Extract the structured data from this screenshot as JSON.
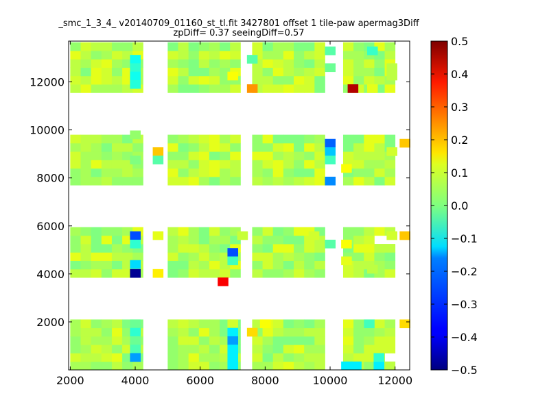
{
  "chart_data": {
    "type": "heatmap",
    "title": "_smc_1_3_4_ v20140709_01160_st_tl.fit 3427801 offset 1 tile-paw apermag3Diff",
    "subtitle": "zpDiff= 0.37 seeingDiff=0.57",
    "xlim": [
      1950,
      12450
    ],
    "ylim": [
      0,
      13700
    ],
    "xticks": [
      2000,
      4000,
      6000,
      8000,
      10000,
      12000
    ],
    "yticks": [
      2000,
      4000,
      6000,
      8000,
      10000,
      12000
    ],
    "grid": false,
    "colorbar": {
      "range": [
        -0.5,
        0.5
      ],
      "ticks": [
        "0.5",
        "0.4",
        "0.3",
        "0.2",
        "0.1",
        "0.0",
        "−0.1",
        "−0.2",
        "−0.3",
        "−0.4",
        "−0.5"
      ],
      "colormap": "jet"
    },
    "cell_size": [
      320,
      350
    ],
    "value_scale": 0.02,
    "block_columns": [
      {
        "x0": 2000,
        "cols": 7
      },
      {
        "x0": 5000,
        "cols": 7
      },
      {
        "x0": 7600,
        "cols": 7
      },
      {
        "x0": 10400,
        "cols": 5
      }
    ],
    "block_rows": [
      {
        "y0": 0,
        "rows": 6
      },
      {
        "y0": 3850,
        "rows": 6
      },
      {
        "y0": 7700,
        "rows": 6
      },
      {
        "y0": 11550,
        "rows": 6
      }
    ],
    "tile_grids": [
      [
        "2211312",
        "4334500",
        "1243143",
        "1322421",
        "2331513",
        "2412300"
      ],
      [
        "1244121",
        "1252233",
        "1223140",
        "1441320",
        "2315200",
        "3432200"
      ],
      [
        "2245323",
        "4031233",
        "3104522",
        "4200003",
        "1532233",
        "3540102"
      ],
      [
        "33123",
        "3443",
        "41444",
        "51244",
        "41123",
        "51442"
      ],
      [
        "3341442",
        "0122033",
        "5355332",
        "1300210",
        "1405053",
        "2101125"
      ],
      [
        "0143341",
        "0032535",
        "4124232",
        "2443105",
        "2320220",
        "3520412"
      ],
      [
        "3112421",
        "1420313",
        "4423210",
        "1055143",
        "3110043",
        "1401550"
      ],
      [
        "43024",
        "43321",
        "11410",
        "05533",
        "134",
        "11353"
      ],
      [
        "1223111",
        "1202232",
        "4253331",
        "4221212",
        "2320331",
        "4332203"
      ],
      [
        "4452021",
        "5134523",
        "3314543",
        "1145015",
        "5013541",
        "1234524"
      ],
      [
        "3232345",
        "2151005",
        "2453153",
        "5523214",
        "1145053",
        "1500012"
      ],
      [
        "25304",
        "01142",
        "44223",
        "43332",
        "03530",
        "00550"
      ],
      [
        "3522234",
        "4354352",
        "3054152",
        "3245211",
        "5312435",
        "1433113"
      ],
      [
        "2001224",
        "4145411",
        "5300215",
        "2103121",
        "4314354",
        "0301203"
      ],
      [
        "3445440",
        "3311540",
        "3153234",
        "3543103",
        "4225134",
        "4022004"
      ],
      [
        "14105",
        "51432",
        "42205",
        "42415",
        "22103",
        "41052"
      ]
    ],
    "special_cells": [
      {
        "x": 4000,
        "y": 12950,
        "v": -0.11
      },
      {
        "x": 4000,
        "y": 12600,
        "v": -0.08
      },
      {
        "x": 4000,
        "y": 12250,
        "v": -0.11
      },
      {
        "x": 4000,
        "y": 11900,
        "v": -0.09
      },
      {
        "x": 7000,
        "y": 12250,
        "v": 0.12
      },
      {
        "x": 7600,
        "y": 11725,
        "v": 0.23
      },
      {
        "x": 7600,
        "y": 12950,
        "v": -0.04
      },
      {
        "x": 10000,
        "y": 13300,
        "v": -0.04
      },
      {
        "x": 10000,
        "y": 12600,
        "v": -0.02
      },
      {
        "x": 10700,
        "y": 11725,
        "v": 0.45
      },
      {
        "x": 11300,
        "y": 11725,
        "v": 0.1
      },
      {
        "x": 11300,
        "y": 13300,
        "v": -0.07
      },
      {
        "x": 11900,
        "y": 12600,
        "v": 0.06
      },
      {
        "x": 11900,
        "y": 12250,
        "v": 0.06
      },
      {
        "x": 4000,
        "y": 9800,
        "v": 0.02
      },
      {
        "x": 4000,
        "y": 8750,
        "v": 0.0
      },
      {
        "x": 4700,
        "y": 9100,
        "v": 0.18
      },
      {
        "x": 4700,
        "y": 8750,
        "v": -0.04
      },
      {
        "x": 10000,
        "y": 9450,
        "v": -0.28
      },
      {
        "x": 10000,
        "y": 9100,
        "v": -0.18
      },
      {
        "x": 10000,
        "y": 8750,
        "v": -0.06
      },
      {
        "x": 10000,
        "y": 7875,
        "v": -0.24
      },
      {
        "x": 10500,
        "y": 8400,
        "v": 0.12
      },
      {
        "x": 12300,
        "y": 9450,
        "v": 0.18
      },
      {
        "x": 11900,
        "y": 9100,
        "v": 0.08
      },
      {
        "x": 4000,
        "y": 5600,
        "v": -0.3
      },
      {
        "x": 4000,
        "y": 5250,
        "v": -0.08
      },
      {
        "x": 4000,
        "y": 4400,
        "v": -0.16
      },
      {
        "x": 4000,
        "y": 4025,
        "v": -0.48
      },
      {
        "x": 4700,
        "y": 5600,
        "v": 0.1
      },
      {
        "x": 4700,
        "y": 4025,
        "v": 0.14
      },
      {
        "x": 7000,
        "y": 4900,
        "v": -0.3
      },
      {
        "x": 7000,
        "y": 4550,
        "v": -0.06
      },
      {
        "x": 6700,
        "y": 3675,
        "v": 0.38
      },
      {
        "x": 7300,
        "y": 5600,
        "v": 0.07
      },
      {
        "x": 9500,
        "y": 5600,
        "v": 0.08
      },
      {
        "x": 10000,
        "y": 5250,
        "v": -0.04
      },
      {
        "x": 10500,
        "y": 5250,
        "v": 0.12
      },
      {
        "x": 10500,
        "y": 4550,
        "v": 0.1
      },
      {
        "x": 12300,
        "y": 5600,
        "v": 0.18
      },
      {
        "x": 11900,
        "y": 5600,
        "v": 0.08
      },
      {
        "x": 11300,
        "y": 4200,
        "v": 0.06
      },
      {
        "x": 4000,
        "y": 1925,
        "v": -0.02
      },
      {
        "x": 4000,
        "y": 1575,
        "v": -0.08
      },
      {
        "x": 4000,
        "y": 1225,
        "v": -0.02
      },
      {
        "x": 4000,
        "y": 875,
        "v": -0.05
      },
      {
        "x": 4000,
        "y": 525,
        "v": -0.22
      },
      {
        "x": 7000,
        "y": 1925,
        "v": 0.08
      },
      {
        "x": 7000,
        "y": 1575,
        "v": -0.14
      },
      {
        "x": 7000,
        "y": 1225,
        "v": -0.22
      },
      {
        "x": 7000,
        "y": 875,
        "v": -0.14
      },
      {
        "x": 7000,
        "y": 525,
        "v": -0.14
      },
      {
        "x": 7000,
        "y": 175,
        "v": -0.14
      },
      {
        "x": 7600,
        "y": 1575,
        "v": 0.16
      },
      {
        "x": 8000,
        "y": 1925,
        "v": 0.12
      },
      {
        "x": 10500,
        "y": 175,
        "v": -0.14
      },
      {
        "x": 10800,
        "y": 175,
        "v": -0.14
      },
      {
        "x": 11500,
        "y": 175,
        "v": -0.14
      },
      {
        "x": 11500,
        "y": 525,
        "v": -0.08
      },
      {
        "x": 11200,
        "y": 1925,
        "v": -0.06
      },
      {
        "x": 12300,
        "y": 1925,
        "v": 0.16
      }
    ]
  }
}
